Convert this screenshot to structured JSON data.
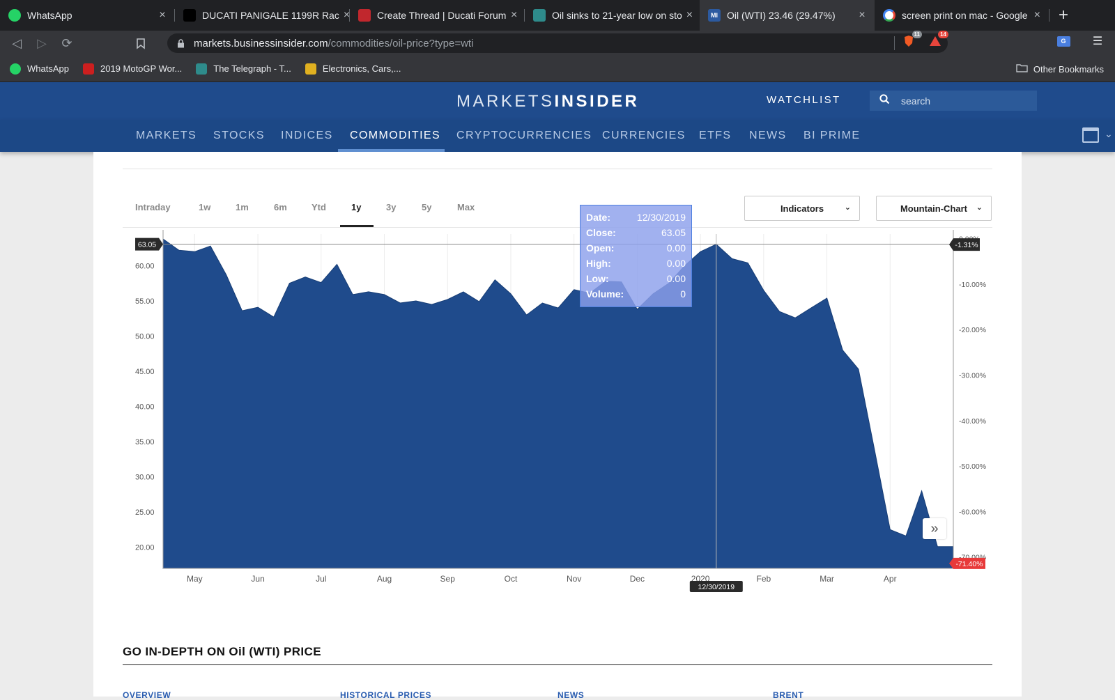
{
  "browser": {
    "tabs": [
      {
        "title": "WhatsApp",
        "icon": "whatsapp-icon",
        "color": "#25d366"
      },
      {
        "title": "DUCATI PANIGALE 1199R Rac",
        "icon": "r-logo-icon",
        "color": "#000000"
      },
      {
        "title": "Create Thread | Ducati Forum",
        "icon": "ducati-forum-icon",
        "color": "#c1272d"
      },
      {
        "title": "Oil sinks to 21-year low on sto",
        "icon": "telegraph-icon",
        "color": "#2e8b8b"
      },
      {
        "title": "Oil (WTI) 23.46 (29.47%)",
        "icon": "markets-insider-icon",
        "color": "#2c5aa0",
        "favtext": "MI"
      },
      {
        "title": "screen print on mac - Google",
        "icon": "google-icon",
        "color": "#ffffff"
      }
    ],
    "new_tab": "+",
    "url_host": "markets.businessinsider.com",
    "url_path": "/commodities/oil-price?type=wti",
    "extension_badges": [
      "11",
      "14"
    ],
    "bookmarks": [
      {
        "label": "WhatsApp",
        "icon": "whatsapp-icon"
      },
      {
        "label": "2019 MotoGP Wor...",
        "icon": "motogp-icon"
      },
      {
        "label": "The Telegraph - T...",
        "icon": "telegraph-icon"
      },
      {
        "label": "Electronics, Cars,...",
        "icon": "ebay-icon"
      }
    ],
    "other_bookmarks": "Other Bookmarks"
  },
  "site": {
    "logo_left": "MARKETS",
    "logo_right": "INSIDER",
    "watchlist": "WATCHLIST",
    "search_placeholder": "search",
    "nav": [
      "MARKETS",
      "STOCKS",
      "INDICES",
      "COMMODITIES",
      "CRYPTOCURRENCIES",
      "CURRENCIES",
      "ETFS",
      "NEWS",
      "BI PRIME"
    ],
    "active_nav": "COMMODITIES",
    "brand_color": "#1f4b8c"
  },
  "chart_controls": {
    "ranges": [
      "Intraday",
      "1w",
      "1m",
      "6m",
      "Ytd",
      "1y",
      "3y",
      "5y",
      "Max"
    ],
    "active_range": "1y",
    "indicators_label": "Indicators",
    "chart_type_label": "Mountain-Chart"
  },
  "tooltip": {
    "rows": [
      {
        "k": "Date:",
        "v": "12/30/2019"
      },
      {
        "k": "Close:",
        "v": "63.05"
      },
      {
        "k": "Open:",
        "v": "0.00"
      },
      {
        "k": "High:",
        "v": "0.00"
      },
      {
        "k": "Low:",
        "v": "0.00"
      },
      {
        "k": "Volume:",
        "v": "0"
      }
    ]
  },
  "chart_data": {
    "type": "area",
    "x_tick_labels": [
      "May",
      "Jun",
      "Jul",
      "Aug",
      "Sep",
      "Oct",
      "Nov",
      "Dec",
      "2020",
      "Feb",
      "Mar",
      "Apr"
    ],
    "y_left_ticks": [
      "60.00",
      "55.00",
      "50.00",
      "45.00",
      "40.00",
      "35.00",
      "30.00",
      "25.00",
      "20.00"
    ],
    "y_right_ticks": [
      "0.00%",
      "-10.00%",
      "-20.00%",
      "-30.00%",
      "-40.00%",
      "-50.00%",
      "-60.00%",
      "-70.00%"
    ],
    "ylim_left": [
      17,
      64.5
    ],
    "ylim_right_pct": [
      -72.5,
      1.0
    ],
    "reference_label": "63.05",
    "crosshair_date": "12/30/2019",
    "crosshair_pct": "-1.31%",
    "last_pct": "-71.40%",
    "fill_color": "#1f4b8c",
    "series": [
      {
        "t": [
          0,
          0.25,
          0.5,
          0.75,
          1.0,
          1.25,
          1.5,
          1.75,
          2.0,
          2.25,
          2.5,
          2.75,
          3.0,
          3.25,
          3.5,
          3.75,
          4.0,
          4.25,
          4.5,
          4.75,
          5.0,
          5.25,
          5.5,
          5.75,
          6.0,
          6.25,
          6.5,
          6.75,
          7.0,
          7.25,
          7.5,
          7.75,
          8.0,
          8.25,
          8.5,
          8.75,
          9.0,
          9.25,
          9.5,
          9.75,
          10.0,
          10.25,
          10.5,
          10.75,
          11.0,
          11.25,
          11.5,
          11.75,
          12.0,
          12.25,
          12.5
        ],
        "values": [
          63.8,
          62.2,
          62.0,
          62.8,
          58.7,
          53.6,
          54.1,
          52.7,
          57.5,
          58.4,
          57.6,
          60.2,
          55.9,
          56.3,
          55.9,
          54.7,
          55.0,
          54.5,
          55.2,
          56.3,
          54.9,
          58.0,
          56.0,
          53.0,
          54.7,
          54.0,
          56.6,
          56.1,
          57.8,
          57.7,
          53.8,
          56.0,
          57.5,
          60.0,
          62.0,
          63.05,
          61.0,
          60.4,
          56.5,
          53.5,
          52.6,
          54.0,
          55.4,
          48.0,
          45.3,
          34.0,
          22.5,
          21.6,
          28.0,
          20.1,
          20.1
        ],
        "x_labels": [
          "May",
          "Jun",
          "Jul",
          "Aug",
          "Sep",
          "Oct",
          "Nov",
          "Dec",
          "2020",
          "Feb",
          "Mar",
          "Apr"
        ]
      }
    ],
    "grid": true
  },
  "footer": {
    "indepth_title": "GO IN-DEPTH ON Oil (WTI) PRICE",
    "links": [
      "OVERVIEW",
      "HISTORICAL PRICES",
      "NEWS",
      "BRENT"
    ]
  }
}
